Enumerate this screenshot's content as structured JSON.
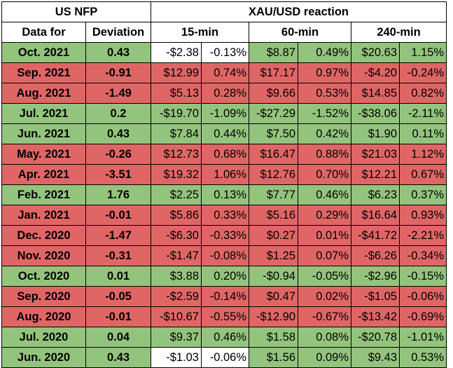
{
  "header": {
    "nfp_title": "US NFP",
    "reaction_title": "XAU/USD reaction",
    "date_col": "Data for",
    "deviation_col": "Deviation",
    "periods": [
      "15-min",
      "60-min",
      "240-min"
    ]
  },
  "colors": {
    "green": "#93c47d",
    "red": "#e06666",
    "white": "#ffffff"
  },
  "rows": [
    {
      "date": "Oct. 2021",
      "dev": "0.43",
      "dc": "g",
      "cells": [
        [
          "-$2.38",
          "-0.13%",
          "w"
        ],
        [
          "$8.87",
          "0.49%",
          "g"
        ],
        [
          "$20.63",
          "1.15%",
          "g"
        ]
      ]
    },
    {
      "date": "Sep. 2021",
      "dev": "-0.91",
      "dc": "r",
      "cells": [
        [
          "$12.99",
          "0.74%",
          "r"
        ],
        [
          "$17.17",
          "0.97%",
          "r"
        ],
        [
          "-$4.20",
          "-0.24%",
          "r"
        ]
      ]
    },
    {
      "date": "Aug. 2021",
      "dev": "-1.49",
      "dc": "r",
      "cells": [
        [
          "$5.13",
          "0.28%",
          "r"
        ],
        [
          "$9.66",
          "0.53%",
          "r"
        ],
        [
          "$14.85",
          "0.82%",
          "r"
        ]
      ]
    },
    {
      "date": "Jul. 2021",
      "dev": "0.2",
      "dc": "g",
      "cells": [
        [
          "-$19.70",
          "-1.09%",
          "g"
        ],
        [
          "-$27.29",
          "-1.52%",
          "g"
        ],
        [
          "-$38.06",
          "-2.11%",
          "g"
        ]
      ]
    },
    {
      "date": "Jun. 2021",
      "dev": "0.43",
      "dc": "g",
      "cells": [
        [
          "$7.84",
          "0.44%",
          "g"
        ],
        [
          "$7.50",
          "0.42%",
          "g"
        ],
        [
          "$1.90",
          "0.11%",
          "g"
        ]
      ]
    },
    {
      "date": "May. 2021",
      "dev": "-0.26",
      "dc": "r",
      "cells": [
        [
          "$12.73",
          "0.68%",
          "r"
        ],
        [
          "$16.47",
          "0.88%",
          "r"
        ],
        [
          "$21.03",
          "1.12%",
          "r"
        ]
      ]
    },
    {
      "date": "Apr. 2021",
      "dev": "-3.51",
      "dc": "r",
      "cells": [
        [
          "$19.32",
          "1.06%",
          "r"
        ],
        [
          "$12.76",
          "0.70%",
          "r"
        ],
        [
          "$12.21",
          "0.67%",
          "r"
        ]
      ]
    },
    {
      "date": "Feb. 2021",
      "dev": "1.76",
      "dc": "g",
      "cells": [
        [
          "$2.25",
          "0.13%",
          "g"
        ],
        [
          "$7.77",
          "0.46%",
          "g"
        ],
        [
          "$6.23",
          "0.37%",
          "g"
        ]
      ]
    },
    {
      "date": "Jan. 2021",
      "dev": "-0.01",
      "dc": "r",
      "cells": [
        [
          "$5.86",
          "0.33%",
          "r"
        ],
        [
          "$5.16",
          "0.29%",
          "r"
        ],
        [
          "$16.64",
          "0.93%",
          "r"
        ]
      ]
    },
    {
      "date": "Dec. 2020",
      "dev": "-1.47",
      "dc": "r",
      "cells": [
        [
          "-$6.30",
          "-0.33%",
          "r"
        ],
        [
          "$0.27",
          "0.01%",
          "r"
        ],
        [
          "-$41.72",
          "-2.21%",
          "r"
        ]
      ]
    },
    {
      "date": "Nov. 2020",
      "dev": "-0.31",
      "dc": "r",
      "cells": [
        [
          "-$1.47",
          "-0.08%",
          "r"
        ],
        [
          "$1.25",
          "0.07%",
          "r"
        ],
        [
          "-$6.26",
          "-0.34%",
          "r"
        ]
      ]
    },
    {
      "date": "Oct. 2020",
      "dev": "0.01",
      "dc": "g",
      "cells": [
        [
          "$3.88",
          "0.20%",
          "g"
        ],
        [
          "-$0.94",
          "-0.05%",
          "g"
        ],
        [
          "-$2.96",
          "-0.15%",
          "g"
        ]
      ]
    },
    {
      "date": "Sep. 2020",
      "dev": "-0.05",
      "dc": "r",
      "cells": [
        [
          "-$2.59",
          "-0.14%",
          "r"
        ],
        [
          "$0.47",
          "0.02%",
          "r"
        ],
        [
          "-$1.05",
          "-0.06%",
          "r"
        ]
      ]
    },
    {
      "date": "Aug. 2020",
      "dev": "-0.01",
      "dc": "r",
      "cells": [
        [
          "-$10.67",
          "-0.55%",
          "r"
        ],
        [
          "-$12.90",
          "-0.67%",
          "r"
        ],
        [
          "-$13.42",
          "-0.69%",
          "r"
        ]
      ]
    },
    {
      "date": "Jul. 2020",
      "dev": "0.04",
      "dc": "g",
      "cells": [
        [
          "$9.37",
          "0.46%",
          "g"
        ],
        [
          "$1.58",
          "0.08%",
          "g"
        ],
        [
          "-$20.78",
          "-1.01%",
          "g"
        ]
      ]
    },
    {
      "date": "Jun. 2020",
      "dev": "0.43",
      "dc": "g",
      "cells": [
        [
          "-$1.03",
          "-0.06%",
          "w"
        ],
        [
          "$1.56",
          "0.09%",
          "g"
        ],
        [
          "$9.43",
          "0.53%",
          "g"
        ]
      ]
    }
  ]
}
